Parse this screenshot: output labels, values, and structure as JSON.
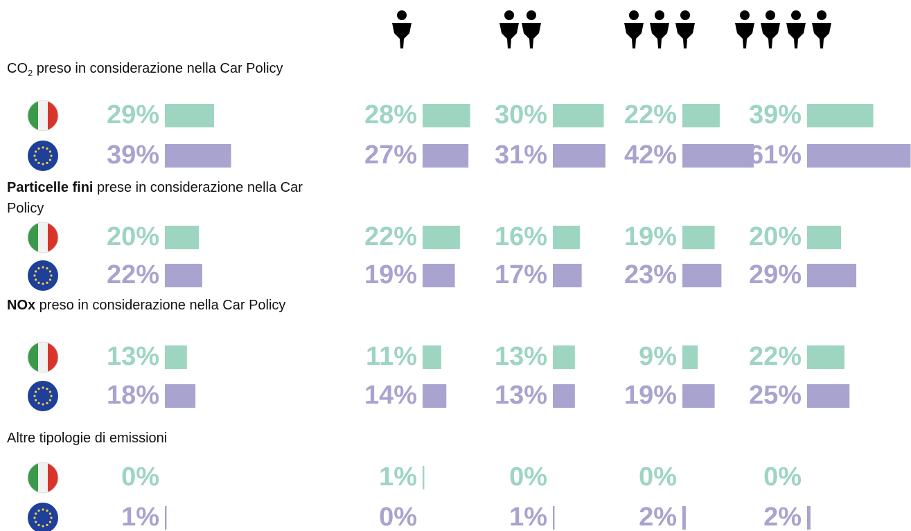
{
  "chart_data": {
    "type": "bar",
    "sections": [
      {
        "title": [
          {
            "text": "CO",
            "style": "normal"
          },
          {
            "text": "2",
            "style": "sub"
          },
          {
            "text": " preso in considerazione nella Car Policy",
            "style": "normal"
          }
        ],
        "series": [
          {
            "color": "#9dd5c0",
            "values": [
              29,
              28,
              30,
              22,
              39
            ],
            "value_labels": [
              "29%",
              "28%",
              "30%",
              "22%",
              "39%"
            ]
          },
          {
            "color": "#a8a3cf",
            "values": [
              39,
              27,
              31,
              42,
              61
            ],
            "value_labels": [
              "39%",
              "27%",
              "31%",
              "42%",
              "61%"
            ]
          }
        ]
      },
      {
        "title": [
          {
            "text": "Particelle fini",
            "style": "bold"
          },
          {
            "text": " prese in considerazione nella Car Policy",
            "style": "normal"
          }
        ],
        "series": [
          {
            "color": "#9dd5c0",
            "values": [
              20,
              22,
              16,
              19,
              20
            ],
            "value_labels": [
              "20%",
              "22%",
              "16%",
              "19%",
              "20%"
            ]
          },
          {
            "color": "#a8a3cf",
            "values": [
              22,
              19,
              17,
              23,
              29
            ],
            "value_labels": [
              "22%",
              "19%",
              "17%",
              "23%",
              "29%"
            ]
          }
        ]
      },
      {
        "title": [
          {
            "text": "NOx",
            "style": "bold"
          },
          {
            "text": " preso in considerazione nella Car Policy",
            "style": "normal"
          }
        ],
        "series": [
          {
            "color": "#9dd5c0",
            "values": [
              13,
              11,
              13,
              9,
              22
            ],
            "value_labels": [
              "13%",
              "11%",
              "13%",
              "9%",
              "22%"
            ]
          },
          {
            "color": "#a8a3cf",
            "values": [
              18,
              14,
              13,
              19,
              25
            ],
            "value_labels": [
              "18%",
              "14%",
              "13%",
              "19%",
              "25%"
            ]
          }
        ]
      },
      {
        "title": [
          {
            "text": "Altre tipologie di emissioni",
            "style": "normal"
          }
        ],
        "series": [
          {
            "color": "#9dd5c0",
            "values": [
              0,
              1,
              0,
              0,
              0
            ],
            "value_labels": [
              "0%",
              "1%",
              "0%",
              "0%",
              "0%"
            ]
          },
          {
            "color": "#a8a3cf",
            "values": [
              1,
              0,
              1,
              2,
              2
            ],
            "value_labels": [
              "1%",
              "0%",
              "1%",
              "2%",
              "2%"
            ]
          }
        ]
      }
    ]
  }
}
